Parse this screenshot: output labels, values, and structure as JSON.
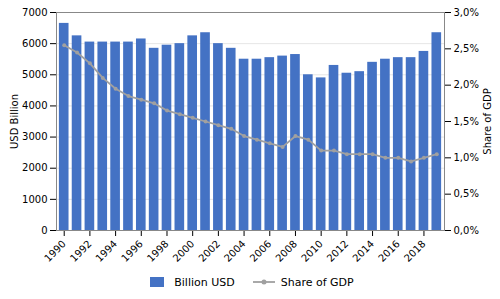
{
  "chart_data": {
    "type": "bar",
    "ylabel": "USD Billion",
    "y2label": "Share of GDP",
    "x": [
      1990,
      1991,
      1992,
      1993,
      1994,
      1995,
      1996,
      1997,
      1998,
      1999,
      2000,
      2001,
      2002,
      2003,
      2004,
      2005,
      2006,
      2007,
      2008,
      2009,
      2010,
      2011,
      2012,
      2013,
      2014,
      2015,
      2016,
      2017,
      2018,
      2019
    ],
    "xlim": [
      1989.4,
      2019.6
    ],
    "xticks": [
      1990,
      1992,
      1994,
      1996,
      1998,
      2000,
      2002,
      2004,
      2006,
      2008,
      2010,
      2012,
      2014,
      2016,
      2018
    ],
    "ylim": [
      0,
      7000
    ],
    "yticks": [
      0,
      1000,
      2000,
      3000,
      4000,
      5000,
      6000,
      7000
    ],
    "y2lim": [
      0.0,
      0.03
    ],
    "y2ticks": [
      {
        "value": 0.0,
        "label": "0,0%"
      },
      {
        "value": 0.005,
        "label": "0,5%"
      },
      {
        "value": 0.01,
        "label": "1,0%"
      },
      {
        "value": 0.015,
        "label": "1,5%"
      },
      {
        "value": 0.02,
        "label": "2,0%"
      },
      {
        "value": 0.025,
        "label": "2,5%"
      },
      {
        "value": 0.03,
        "label": "3,0%"
      }
    ],
    "grid": true,
    "legend": "bottom",
    "series": [
      {
        "name": "Billion USD",
        "type": "bar",
        "color": "#4472C4",
        "values": [
          6650,
          6250,
          6050,
          6050,
          6050,
          6050,
          6150,
          5850,
          5950,
          6000,
          6250,
          6350,
          6000,
          5850,
          5500,
          5500,
          5550,
          5600,
          5650,
          5000,
          4900,
          5300,
          5050,
          5100,
          5400,
          5500,
          5550,
          5550,
          5750,
          6350
        ]
      },
      {
        "name": "Share of GDP",
        "type": "line",
        "axis": "y2",
        "color": "#A0A0A0",
        "marker": "circle",
        "values": [
          0.0255,
          0.0245,
          0.023,
          0.021,
          0.0195,
          0.0185,
          0.018,
          0.0175,
          0.0165,
          0.016,
          0.0155,
          0.015,
          0.0145,
          0.014,
          0.013,
          0.0125,
          0.012,
          0.0115,
          0.013,
          0.0125,
          0.011,
          0.011,
          0.0105,
          0.0105,
          0.0105,
          0.01,
          0.01,
          0.0095,
          0.01,
          0.0105
        ]
      }
    ]
  }
}
